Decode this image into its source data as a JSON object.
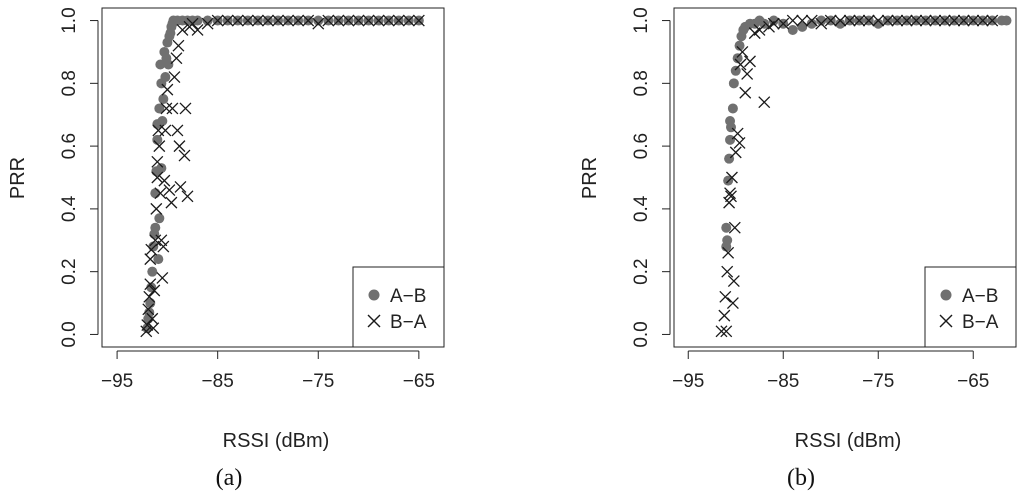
{
  "colors": {
    "ab_marker": "#707070",
    "ba_marker": "#1a1a1a",
    "axis": "#222222",
    "background": "#ffffff"
  },
  "legend_icons": {
    "ab": "filled-circle-marker",
    "ba": "x-cross-marker"
  },
  "chart_data": [
    {
      "type": "scatter",
      "caption": "(a)",
      "title": "",
      "xlabel": "RSSI (dBm)",
      "ylabel": "PRR",
      "xlim": [
        -96.5,
        -62.5
      ],
      "ylim": [
        -0.04,
        1.04
      ],
      "xticks": [
        -95,
        -85,
        -75,
        -65
      ],
      "yticks": [
        0.0,
        0.2,
        0.4,
        0.6,
        0.8,
        1.0
      ],
      "xtick_labels": [
        "−95",
        "−85",
        "−75",
        "−65"
      ],
      "ytick_labels": [
        "0.0",
        "0.2",
        "0.4",
        "0.6",
        "0.8",
        "1.0"
      ],
      "grid": false,
      "legend_position": "bottom-right",
      "legend": [
        "A−B",
        "B−A"
      ],
      "series": [
        {
          "name": "A−B",
          "marker": "filled-circle",
          "points": [
            [
              -92.0,
              0.02
            ],
            [
              -91.9,
              0.05
            ],
            [
              -91.8,
              0.07
            ],
            [
              -91.7,
              0.1
            ],
            [
              -91.6,
              0.15
            ],
            [
              -91.5,
              0.2
            ],
            [
              -91.4,
              0.28
            ],
            [
              -91.3,
              0.32
            ],
            [
              -91.2,
              0.34
            ],
            [
              -91.2,
              0.45
            ],
            [
              -91.1,
              0.52
            ],
            [
              -91.0,
              0.62
            ],
            [
              -91.0,
              0.67
            ],
            [
              -90.9,
              0.24
            ],
            [
              -90.8,
              0.37
            ],
            [
              -90.8,
              0.72
            ],
            [
              -90.7,
              0.86
            ],
            [
              -90.6,
              0.8
            ],
            [
              -90.6,
              0.53
            ],
            [
              -90.5,
              0.68
            ],
            [
              -90.4,
              0.75
            ],
            [
              -90.3,
              0.9
            ],
            [
              -90.2,
              0.82
            ],
            [
              -90.1,
              0.88
            ],
            [
              -90.0,
              0.93
            ],
            [
              -89.9,
              0.86
            ],
            [
              -89.8,
              0.95
            ],
            [
              -89.7,
              0.96
            ],
            [
              -89.6,
              0.98
            ],
            [
              -89.5,
              0.99
            ],
            [
              -89.4,
              1.0
            ],
            [
              -89.0,
              1.0
            ],
            [
              -88.5,
              1.0
            ],
            [
              -88.0,
              1.0
            ],
            [
              -87.5,
              1.0
            ],
            [
              -87.0,
              1.0
            ],
            [
              -86.0,
              1.0
            ],
            [
              -85.0,
              1.0
            ],
            [
              -84.0,
              1.0
            ],
            [
              -83.0,
              1.0
            ],
            [
              -82.0,
              1.0
            ],
            [
              -81.0,
              1.0
            ],
            [
              -80.0,
              1.0
            ],
            [
              -79.0,
              1.0
            ],
            [
              -78.0,
              1.0
            ],
            [
              -77.0,
              1.0
            ],
            [
              -76.0,
              1.0
            ],
            [
              -75.0,
              1.0
            ],
            [
              -74.0,
              1.0
            ],
            [
              -73.0,
              1.0
            ],
            [
              -72.0,
              1.0
            ],
            [
              -71.0,
              1.0
            ],
            [
              -70.0,
              1.0
            ],
            [
              -69.0,
              1.0
            ],
            [
              -68.0,
              1.0
            ],
            [
              -67.0,
              1.0
            ],
            [
              -66.0,
              1.0
            ],
            [
              -65.0,
              1.0
            ]
          ]
        },
        {
          "name": "B−A",
          "marker": "x",
          "points": [
            [
              -92.1,
              0.01
            ],
            [
              -92.0,
              0.03
            ],
            [
              -91.9,
              0.08
            ],
            [
              -91.8,
              0.12
            ],
            [
              -91.7,
              0.16
            ],
            [
              -91.7,
              0.24
            ],
            [
              -91.6,
              0.27
            ],
            [
              -91.5,
              0.05
            ],
            [
              -91.4,
              0.02
            ],
            [
              -91.3,
              0.14
            ],
            [
              -91.2,
              0.3
            ],
            [
              -91.1,
              0.4
            ],
            [
              -91.0,
              0.5
            ],
            [
              -91.0,
              0.55
            ],
            [
              -90.9,
              0.65
            ],
            [
              -90.8,
              0.6
            ],
            [
              -90.7,
              0.45
            ],
            [
              -90.6,
              0.3
            ],
            [
              -90.5,
              0.18
            ],
            [
              -90.4,
              0.28
            ],
            [
              -90.3,
              0.49
            ],
            [
              -90.2,
              0.65
            ],
            [
              -90.1,
              0.72
            ],
            [
              -90.0,
              0.78
            ],
            [
              -89.8,
              0.46
            ],
            [
              -89.6,
              0.42
            ],
            [
              -89.5,
              0.72
            ],
            [
              -89.3,
              0.82
            ],
            [
              -89.1,
              0.88
            ],
            [
              -88.9,
              0.92
            ],
            [
              -89.0,
              0.65
            ],
            [
              -88.8,
              0.6
            ],
            [
              -88.7,
              0.47
            ],
            [
              -88.5,
              0.97
            ],
            [
              -88.3,
              0.57
            ],
            [
              -88.2,
              0.72
            ],
            [
              -88.0,
              0.44
            ],
            [
              -87.8,
              0.98
            ],
            [
              -87.5,
              0.99
            ],
            [
              -87.0,
              0.97
            ],
            [
              -86.0,
              0.99
            ],
            [
              -85.0,
              1.0
            ],
            [
              -84.0,
              1.0
            ],
            [
              -83.0,
              1.0
            ],
            [
              -82.0,
              1.0
            ],
            [
              -81.0,
              1.0
            ],
            [
              -80.0,
              1.0
            ],
            [
              -79.0,
              1.0
            ],
            [
              -78.0,
              1.0
            ],
            [
              -77.0,
              1.0
            ],
            [
              -76.0,
              1.0
            ],
            [
              -75.0,
              0.99
            ],
            [
              -74.0,
              1.0
            ],
            [
              -73.0,
              1.0
            ],
            [
              -72.0,
              1.0
            ],
            [
              -71.0,
              1.0
            ],
            [
              -70.0,
              1.0
            ],
            [
              -69.0,
              1.0
            ],
            [
              -68.0,
              1.0
            ],
            [
              -67.0,
              1.0
            ],
            [
              -66.0,
              1.0
            ],
            [
              -65.0,
              1.0
            ]
          ]
        }
      ]
    },
    {
      "type": "scatter",
      "caption": "(b)",
      "title": "",
      "xlabel": "RSSI (dBm)",
      "ylabel": "PRR",
      "xlim": [
        -96.5,
        -60.5
      ],
      "ylim": [
        -0.04,
        1.04
      ],
      "xticks": [
        -95,
        -85,
        -75,
        -65
      ],
      "yticks": [
        0.0,
        0.2,
        0.4,
        0.6,
        0.8,
        1.0
      ],
      "xtick_labels": [
        "−95",
        "−85",
        "−75",
        "−65"
      ],
      "ytick_labels": [
        "0.0",
        "0.2",
        "0.4",
        "0.6",
        "0.8",
        "1.0"
      ],
      "grid": false,
      "legend_position": "bottom-right",
      "legend": [
        "A−B",
        "B−A"
      ],
      "series": [
        {
          "name": "A−B",
          "marker": "filled-circle",
          "points": [
            [
              -91.0,
              0.28
            ],
            [
              -91.0,
              0.34
            ],
            [
              -90.9,
              0.3
            ],
            [
              -90.8,
              0.49
            ],
            [
              -90.7,
              0.56
            ],
            [
              -90.6,
              0.62
            ],
            [
              -90.6,
              0.68
            ],
            [
              -90.5,
              0.66
            ],
            [
              -90.3,
              0.72
            ],
            [
              -90.2,
              0.8
            ],
            [
              -90.0,
              0.84
            ],
            [
              -89.8,
              0.88
            ],
            [
              -89.6,
              0.92
            ],
            [
              -89.4,
              0.95
            ],
            [
              -89.2,
              0.97
            ],
            [
              -89.0,
              0.98
            ],
            [
              -88.5,
              0.99
            ],
            [
              -88.0,
              0.99
            ],
            [
              -87.5,
              1.0
            ],
            [
              -87.0,
              0.99
            ],
            [
              -86.0,
              1.0
            ],
            [
              -85.0,
              0.99
            ],
            [
              -84.0,
              0.97
            ],
            [
              -83.0,
              0.98
            ],
            [
              -82.0,
              0.99
            ],
            [
              -81.0,
              1.0
            ],
            [
              -80.0,
              1.0
            ],
            [
              -79.0,
              0.99
            ],
            [
              -78.0,
              1.0
            ],
            [
              -77.0,
              1.0
            ],
            [
              -76.0,
              1.0
            ],
            [
              -75.0,
              0.99
            ],
            [
              -74.0,
              1.0
            ],
            [
              -73.0,
              1.0
            ],
            [
              -72.0,
              1.0
            ],
            [
              -71.0,
              1.0
            ],
            [
              -70.0,
              1.0
            ],
            [
              -69.0,
              1.0
            ],
            [
              -68.0,
              1.0
            ],
            [
              -67.0,
              1.0
            ],
            [
              -66.0,
              1.0
            ],
            [
              -65.0,
              1.0
            ],
            [
              -64.0,
              1.0
            ],
            [
              -63.0,
              1.0
            ],
            [
              -62.0,
              1.0
            ],
            [
              -61.5,
              1.0
            ]
          ]
        },
        {
          "name": "B−A",
          "marker": "x",
          "points": [
            [
              -91.5,
              0.01
            ],
            [
              -91.2,
              0.06
            ],
            [
              -91.0,
              0.01
            ],
            [
              -91.1,
              0.12
            ],
            [
              -90.9,
              0.2
            ],
            [
              -90.8,
              0.26
            ],
            [
              -90.7,
              0.42
            ],
            [
              -90.6,
              0.45
            ],
            [
              -90.5,
              0.44
            ],
            [
              -90.4,
              0.5
            ],
            [
              -90.3,
              0.1
            ],
            [
              -90.2,
              0.17
            ],
            [
              -90.1,
              0.34
            ],
            [
              -90.0,
              0.58
            ],
            [
              -89.8,
              0.64
            ],
            [
              -89.6,
              0.61
            ],
            [
              -89.5,
              0.86
            ],
            [
              -89.3,
              0.9
            ],
            [
              -89.0,
              0.77
            ],
            [
              -88.8,
              0.83
            ],
            [
              -88.5,
              0.87
            ],
            [
              -88.0,
              0.96
            ],
            [
              -87.5,
              0.97
            ],
            [
              -87.0,
              0.74
            ],
            [
              -86.5,
              0.98
            ],
            [
              -86.0,
              0.99
            ],
            [
              -85.0,
              0.99
            ],
            [
              -84.0,
              1.0
            ],
            [
              -83.0,
              1.0
            ],
            [
              -82.0,
              1.0
            ],
            [
              -81.0,
              0.99
            ],
            [
              -80.0,
              1.0
            ],
            [
              -79.0,
              1.0
            ],
            [
              -78.0,
              1.0
            ],
            [
              -77.0,
              1.0
            ],
            [
              -76.0,
              1.0
            ],
            [
              -75.0,
              1.0
            ],
            [
              -74.0,
              1.0
            ],
            [
              -73.0,
              1.0
            ],
            [
              -72.0,
              1.0
            ],
            [
              -71.0,
              1.0
            ],
            [
              -70.0,
              1.0
            ],
            [
              -69.0,
              1.0
            ],
            [
              -68.0,
              1.0
            ],
            [
              -67.0,
              1.0
            ],
            [
              -66.0,
              1.0
            ],
            [
              -65.0,
              1.0
            ],
            [
              -64.0,
              1.0
            ],
            [
              -63.0,
              1.0
            ]
          ]
        }
      ]
    }
  ]
}
